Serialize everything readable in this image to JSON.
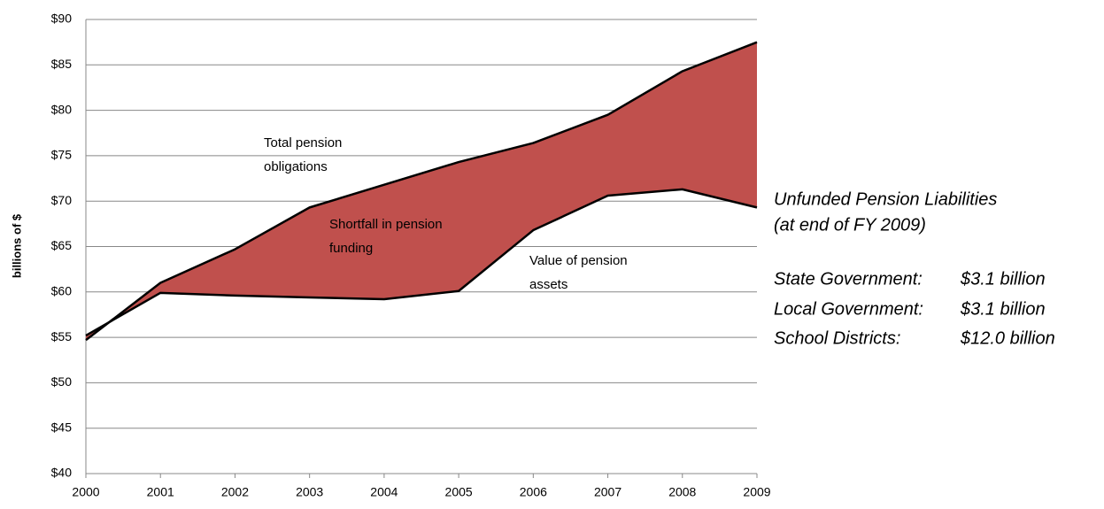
{
  "chart_data": {
    "type": "area-band",
    "y_label": "billions of $",
    "x": [
      2000,
      2001,
      2002,
      2003,
      2004,
      2005,
      2006,
      2007,
      2008,
      2009
    ],
    "series": [
      {
        "name": "Total pension obligations",
        "color": "#000000",
        "values": [
          54.7,
          61.0,
          64.7,
          69.3,
          71.8,
          74.3,
          76.4,
          79.5,
          84.3,
          87.5
        ]
      },
      {
        "name": "Value of pension assets",
        "color": "#000000",
        "values": [
          55.2,
          59.9,
          59.6,
          59.4,
          59.2,
          60.1,
          66.8,
          70.6,
          71.3,
          69.3
        ]
      }
    ],
    "fill_color": "#c0504d",
    "annotations": [
      {
        "lines": [
          "Total pension",
          "obligations"
        ]
      },
      {
        "lines": [
          "Shortfall in pension",
          "funding"
        ]
      },
      {
        "lines": [
          "Value of pension",
          "assets"
        ]
      }
    ],
    "xlim": [
      2000,
      2009
    ],
    "xticks": [
      2000,
      2001,
      2002,
      2003,
      2004,
      2005,
      2006,
      2007,
      2008,
      2009
    ],
    "ylim": [
      40,
      90
    ],
    "yticks": [
      {
        "value": 40,
        "label": "$40"
      },
      {
        "value": 45,
        "label": "$45"
      },
      {
        "value": 50,
        "label": "$50"
      },
      {
        "value": 55,
        "label": "$55"
      },
      {
        "value": 60,
        "label": "$60"
      },
      {
        "value": 65,
        "label": "$65"
      },
      {
        "value": 70,
        "label": "$70"
      },
      {
        "value": 75,
        "label": "$75"
      },
      {
        "value": 80,
        "label": "$80"
      },
      {
        "value": 85,
        "label": "$85"
      },
      {
        "value": 90,
        "label": "$90"
      }
    ],
    "grid": true
  },
  "side_note": {
    "title_lines": [
      "Unfunded Pension Liabilities",
      "(at end of FY 2009)"
    ],
    "items": [
      {
        "label": "State Government:",
        "value": "$3.1 billion"
      },
      {
        "label": "Local Government:",
        "value": "$3.1 billion"
      },
      {
        "label": "School Districts:",
        "value": "$12.0 billion"
      }
    ]
  }
}
